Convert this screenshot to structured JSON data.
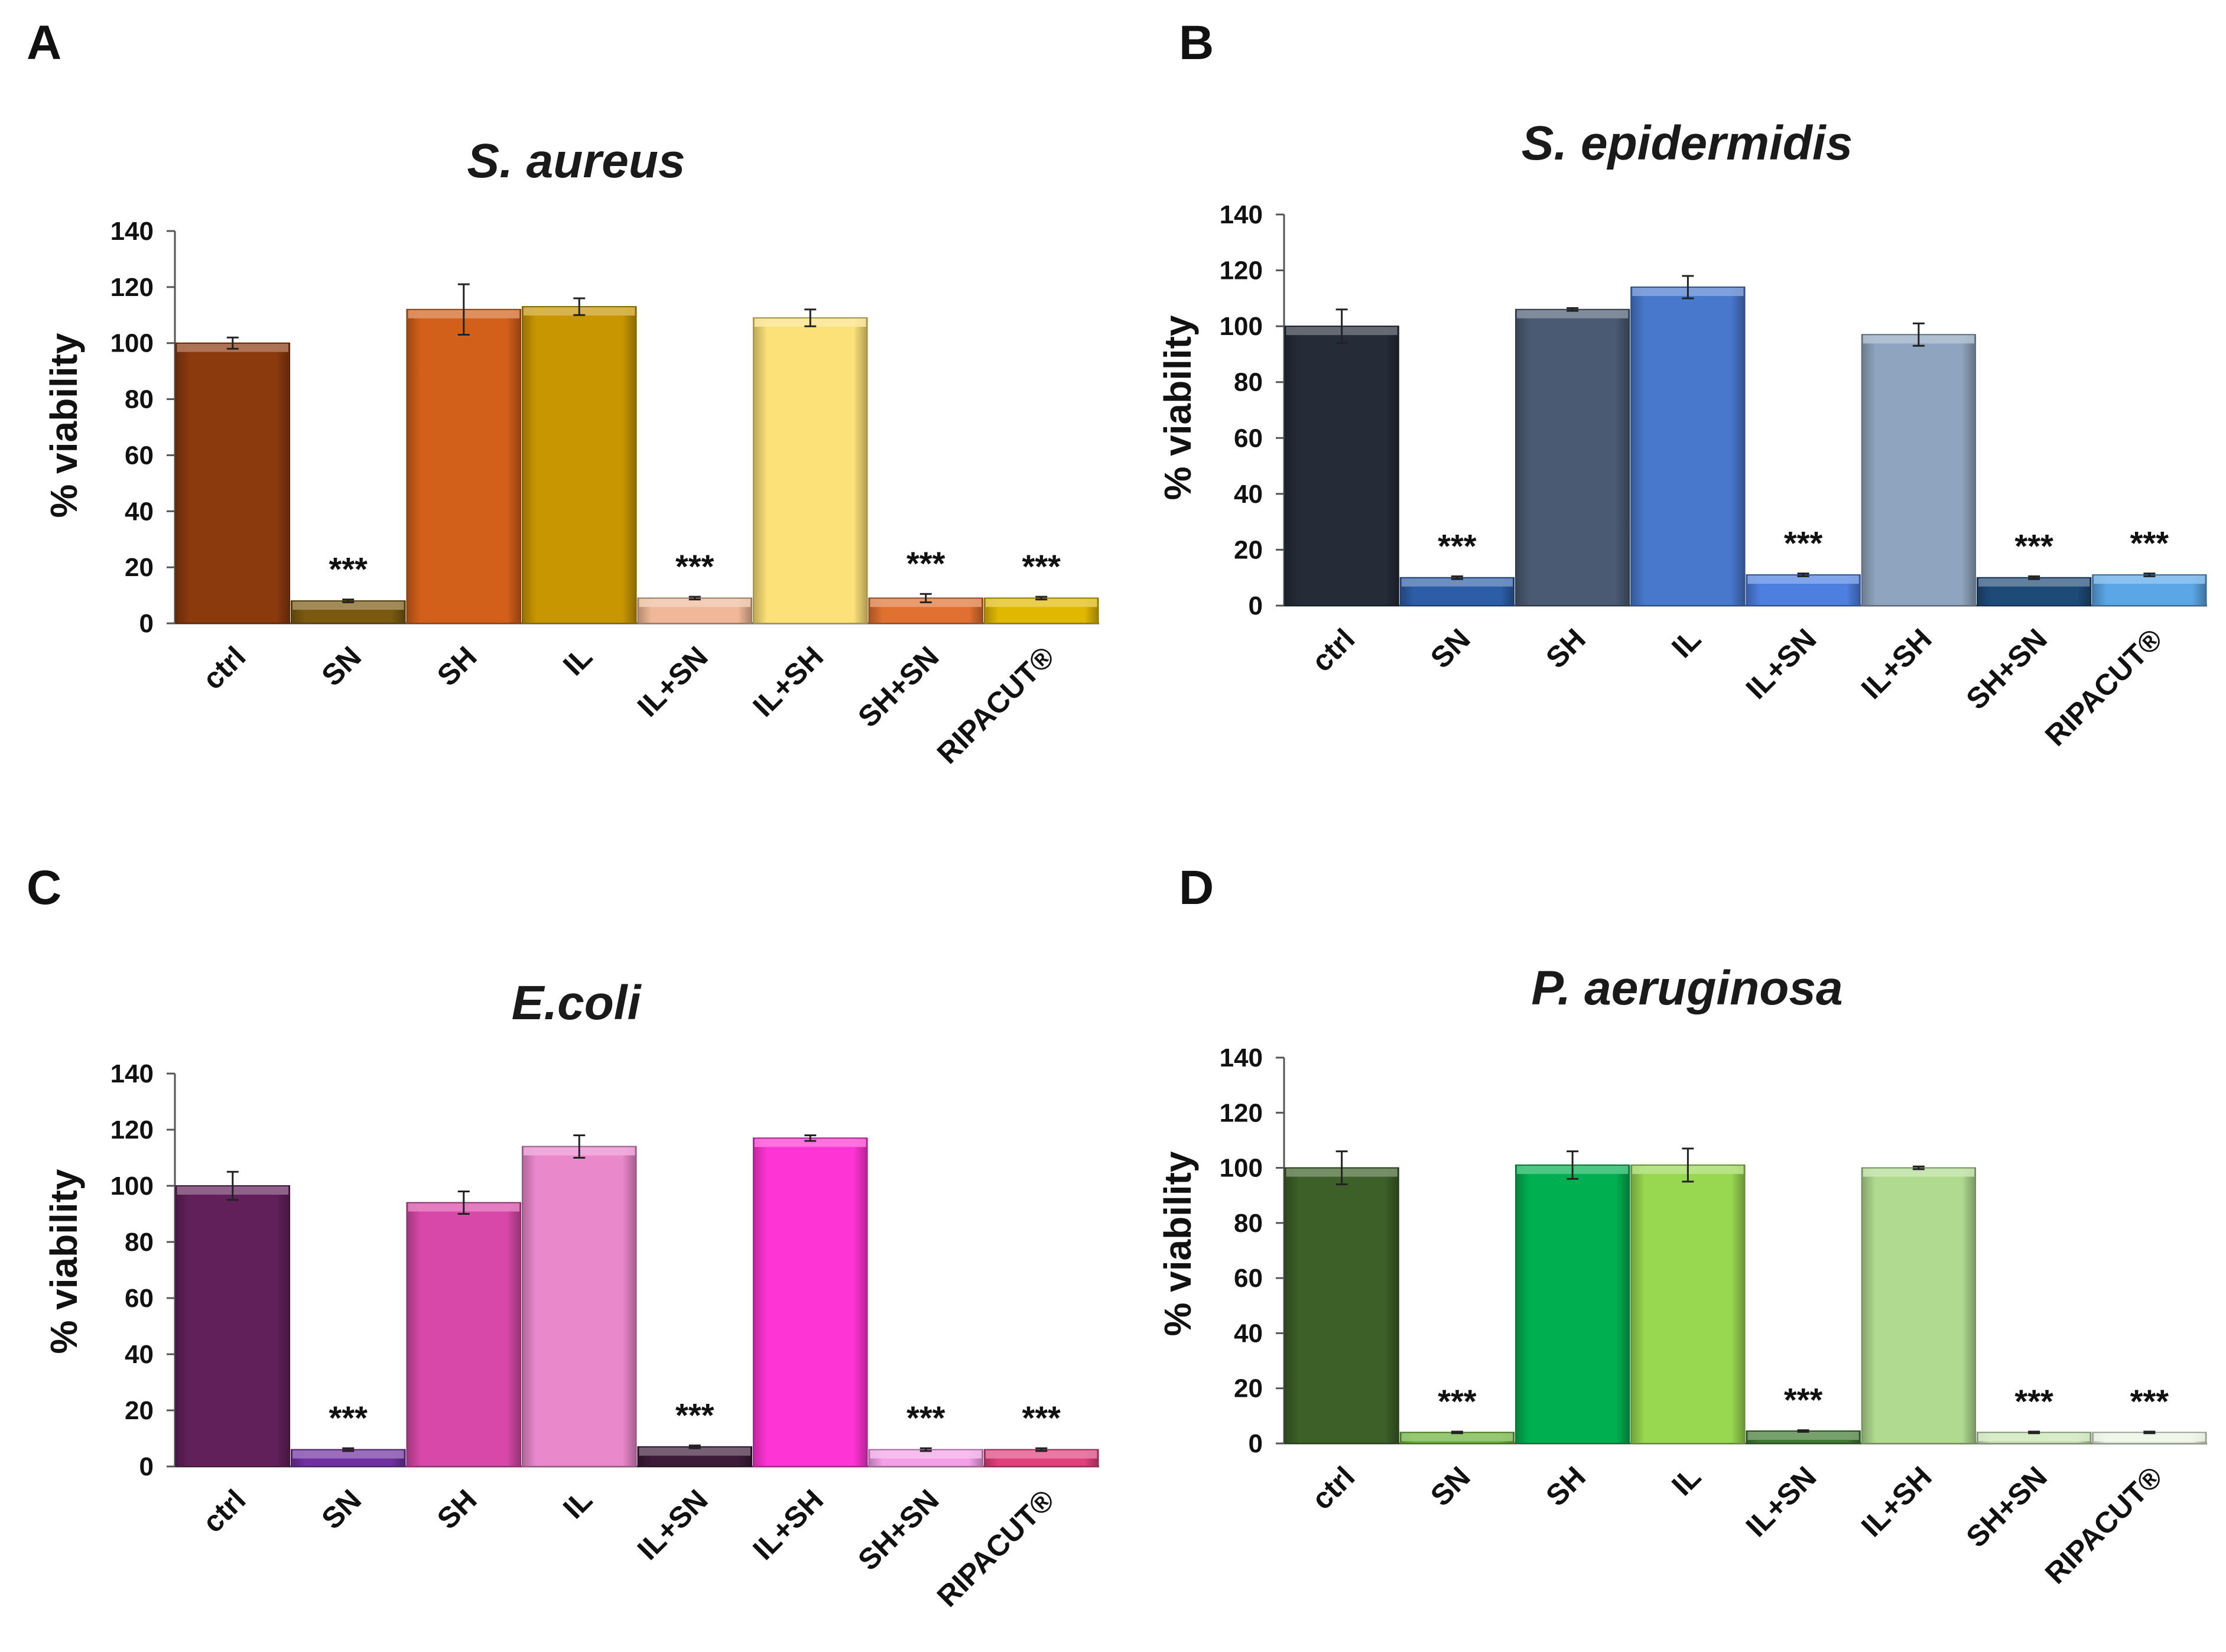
{
  "figure": {
    "panels": [
      "A",
      "B",
      "C",
      "D"
    ]
  },
  "chart_data": [
    {
      "type": "bar",
      "panel": "A",
      "title": "S. aureus",
      "xlabel": "",
      "ylabel": "% viability",
      "ylim": [
        0,
        140
      ],
      "yticks": [
        0,
        20,
        40,
        60,
        80,
        100,
        120,
        140
      ],
      "categories": [
        "ctrl",
        "SN",
        "SH",
        "IL",
        "IL+SN",
        "IL+SH",
        "SH+SN",
        "RIPACUT®"
      ],
      "values": [
        100,
        8,
        112,
        113,
        9,
        109,
        9,
        9
      ],
      "errors": [
        2,
        0.5,
        9,
        3,
        0.5,
        3,
        1.5,
        0.5
      ],
      "significance": [
        "",
        "***",
        "",
        "",
        "***",
        "",
        "***",
        "***"
      ],
      "colors": [
        "#8B3A0E",
        "#7A5A10",
        "#D2601A",
        "#C89600",
        "#F0B898",
        "#FCE078",
        "#E07030",
        "#E0B800"
      ]
    },
    {
      "type": "bar",
      "panel": "B",
      "title": "S. epidermidis",
      "xlabel": "",
      "ylabel": "% viability",
      "ylim": [
        0,
        140
      ],
      "yticks": [
        0,
        20,
        40,
        60,
        80,
        100,
        120,
        140
      ],
      "categories": [
        "ctrl",
        "SN",
        "SH",
        "IL",
        "IL+SN",
        "IL+SH",
        "SH+SN",
        "RIPACUT®"
      ],
      "values": [
        100,
        10,
        106,
        114,
        11,
        97,
        10,
        11
      ],
      "errors": [
        6,
        0.5,
        0.5,
        4,
        0.5,
        4,
        0.5,
        0.5
      ],
      "significance": [
        "",
        "***",
        "",
        "",
        "***",
        "",
        "***",
        "***"
      ],
      "colors": [
        "#252C38",
        "#2E5DA8",
        "#4A5A72",
        "#4878CC",
        "#4D7FE0",
        "#8FA4BE",
        "#1E4A78",
        "#5AA6E6"
      ]
    },
    {
      "type": "bar",
      "panel": "C",
      "title": "E.coli",
      "xlabel": "",
      "ylabel": "% viability",
      "ylim": [
        0,
        140
      ],
      "yticks": [
        0,
        20,
        40,
        60,
        80,
        100,
        120,
        140
      ],
      "categories": [
        "ctrl",
        "SN",
        "SH",
        "IL",
        "IL+SN",
        "IL+SH",
        "SH+SN",
        "RIPACUT®"
      ],
      "values": [
        100,
        6,
        94,
        114,
        7,
        117,
        6,
        6
      ],
      "errors": [
        5,
        0.5,
        4,
        4,
        0.5,
        1,
        0.5,
        0.5
      ],
      "significance": [
        "",
        "***",
        "",
        "",
        "***",
        "",
        "***",
        "***"
      ],
      "colors": [
        "#62205A",
        "#7030A0",
        "#D848A8",
        "#EA88CC",
        "#3C1C38",
        "#FF34D4",
        "#F4A0E8",
        "#E0407C"
      ]
    },
    {
      "type": "bar",
      "panel": "D",
      "title": "P. aeruginosa",
      "xlabel": "",
      "ylabel": "% viability",
      "ylim": [
        0,
        140
      ],
      "yticks": [
        0,
        20,
        40,
        60,
        80,
        100,
        120,
        140
      ],
      "categories": [
        "ctrl",
        "SN",
        "SH",
        "IL",
        "IL+SN",
        "IL+SH",
        "SH+SN",
        "RIPACUT®"
      ],
      "values": [
        100,
        4,
        101,
        101,
        4.5,
        100,
        4,
        4
      ],
      "errors": [
        6,
        0.3,
        5,
        6,
        0.3,
        0.5,
        0.3,
        0.3
      ],
      "significance": [
        "",
        "***",
        "",
        "",
        "***",
        "",
        "***",
        "***"
      ],
      "colors": [
        "#3C6028",
        "#6AB038",
        "#00B050",
        "#98D850",
        "#3E7830",
        "#B0DA90",
        "#C8E4B4",
        "#E8F2E0"
      ]
    }
  ]
}
